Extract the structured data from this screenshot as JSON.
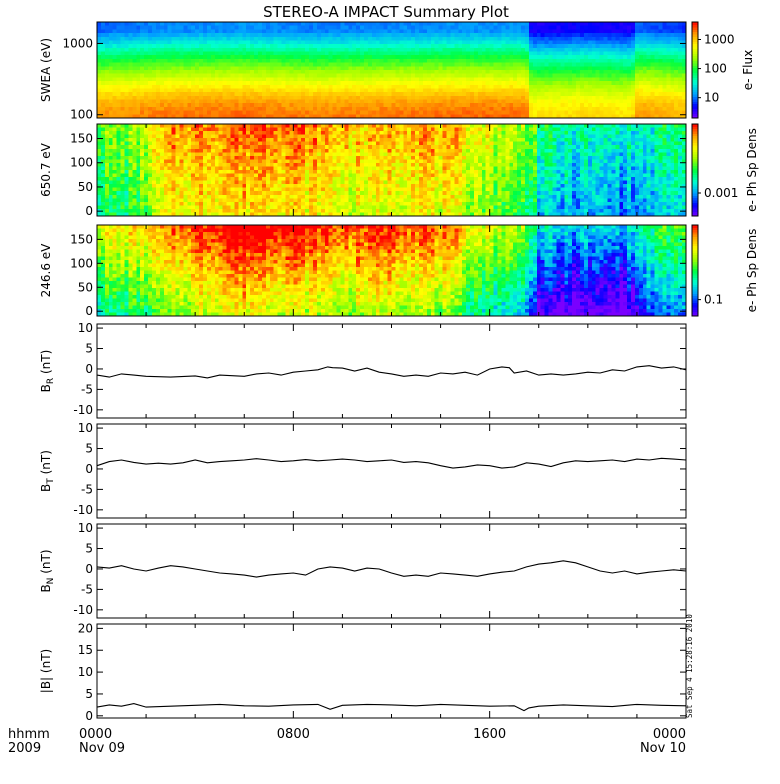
{
  "title": "STEREO-A IMPACT Summary Plot",
  "time_axis": {
    "corner_label_1": "hhmm",
    "corner_label_2": "2009",
    "range_hours": [
      0,
      24
    ],
    "ticks": [
      {
        "hour": 0,
        "line1": "0000",
        "line2": "Nov 09"
      },
      {
        "hour": 8,
        "line1": "0800",
        "line2": ""
      },
      {
        "hour": 16,
        "line1": "1600",
        "line2": ""
      },
      {
        "hour": 24,
        "line1": "0000",
        "line2": "Nov 10"
      }
    ]
  },
  "timestamp": "Sat Sep  4 15:28:16 2010",
  "colors": {
    "line": "#000000",
    "colormap": [
      "#7a00ff",
      "#0000ff",
      "#00a0ff",
      "#00ffd0",
      "#00ff40",
      "#a0ff00",
      "#ffff00",
      "#ffa000",
      "#ff0000"
    ]
  },
  "chart_data": [
    {
      "type": "heatmap",
      "panel": "swea",
      "ylabel": "SWEA (eV)",
      "yscale": "log",
      "ylim": [
        90,
        2000
      ],
      "yticks": [
        {
          "value": 100,
          "label": "100"
        },
        {
          "value": 1000,
          "label": "1000"
        }
      ],
      "colorbar": {
        "label": "e- Flux",
        "scale": "log",
        "range": [
          2,
          4000
        ],
        "ticks": [
          {
            "value": 10,
            "label": "10"
          },
          {
            "value": 100,
            "label": "100"
          },
          {
            "value": 1000,
            "label": "1000"
          }
        ]
      },
      "description_values": {
        "energy_band_levels": [
          {
            "energy": 100,
            "level": 0.86
          },
          {
            "energy": 150,
            "level": 0.82
          },
          {
            "energy": 220,
            "level": 0.74
          },
          {
            "energy": 350,
            "level": 0.62
          },
          {
            "energy": 500,
            "level": 0.52
          },
          {
            "energy": 700,
            "level": 0.42
          },
          {
            "energy": 1000,
            "level": 0.3
          },
          {
            "energy": 1500,
            "level": 0.18
          }
        ],
        "time_modulation": [
          {
            "hour": 0,
            "delta": 0.02
          },
          {
            "hour": 3,
            "delta": 0.05
          },
          {
            "hour": 6,
            "delta": 0.06
          },
          {
            "hour": 9,
            "delta": 0.04
          },
          {
            "hour": 12,
            "delta": 0.05
          },
          {
            "hour": 15,
            "delta": 0.06
          },
          {
            "hour": 17.5,
            "delta": 0.06
          },
          {
            "hour": 17.7,
            "delta": -0.08
          },
          {
            "hour": 20,
            "delta": -0.06
          },
          {
            "hour": 21.8,
            "delta": -0.08
          },
          {
            "hour": 22,
            "delta": 0.02
          },
          {
            "hour": 24,
            "delta": -0.02
          }
        ]
      }
    },
    {
      "type": "heatmap",
      "panel": "pad_650",
      "ylabel": "650.7 eV",
      "ylim": [
        -10,
        180
      ],
      "yticks": [
        {
          "value": 0,
          "label": "0"
        },
        {
          "value": 50,
          "label": "50"
        },
        {
          "value": 100,
          "label": "100"
        },
        {
          "value": 150,
          "label": "150"
        }
      ],
      "colorbar": {
        "label": "e- Ph Sp Dens",
        "ticks": [
          {
            "level": 0.25,
            "label": "0.001"
          }
        ]
      },
      "level_profile": [
        {
          "hour": 0,
          "level": 0.5
        },
        {
          "hour": 1.5,
          "level": 0.52
        },
        {
          "hour": 3,
          "level": 0.78
        },
        {
          "hour": 5,
          "level": 0.82
        },
        {
          "hour": 7,
          "level": 0.86
        },
        {
          "hour": 9,
          "level": 0.78
        },
        {
          "hour": 11,
          "level": 0.72
        },
        {
          "hour": 13,
          "level": 0.8
        },
        {
          "hour": 15,
          "level": 0.7
        },
        {
          "hour": 16.5,
          "level": 0.6
        },
        {
          "hour": 17.8,
          "level": 0.52
        },
        {
          "hour": 18,
          "level": 0.35
        },
        {
          "hour": 20,
          "level": 0.3
        },
        {
          "hour": 22,
          "level": 0.28
        },
        {
          "hour": 24,
          "level": 0.4
        }
      ]
    },
    {
      "type": "heatmap",
      "panel": "pad_246",
      "ylabel": "246.6 eV",
      "ylim": [
        -10,
        180
      ],
      "yticks": [
        {
          "value": 0,
          "label": "0"
        },
        {
          "value": 50,
          "label": "50"
        },
        {
          "value": 100,
          "label": "100"
        },
        {
          "value": 150,
          "label": "150"
        }
      ],
      "colorbar": {
        "label": "e- Ph Sp Dens",
        "ticks": [
          {
            "level": 0.18,
            "label": "0.1"
          }
        ]
      },
      "level_profile": [
        {
          "hour": 0,
          "level": 0.55
        },
        {
          "hour": 2,
          "level": 0.62
        },
        {
          "hour": 4,
          "level": 0.8
        },
        {
          "hour": 6,
          "level": 0.9
        },
        {
          "hour": 8,
          "level": 0.84
        },
        {
          "hour": 10,
          "level": 0.76
        },
        {
          "hour": 12,
          "level": 0.82
        },
        {
          "hour": 14,
          "level": 0.74
        },
        {
          "hour": 15.5,
          "level": 0.56
        },
        {
          "hour": 17.5,
          "level": 0.45
        },
        {
          "hour": 18,
          "level": 0.14
        },
        {
          "hour": 21.5,
          "level": 0.1
        },
        {
          "hour": 22.5,
          "level": 0.3
        },
        {
          "hour": 24,
          "level": 0.4
        }
      ]
    },
    {
      "type": "line",
      "panel": "br",
      "ylabel": "B",
      "ylabel_sub": "R",
      "ylabel_unit": " (nT)",
      "ylim": [
        -12,
        11
      ],
      "yticks": [
        {
          "value": -10,
          "label": "-10"
        },
        {
          "value": -5,
          "label": "-5"
        },
        {
          "value": 0,
          "label": "0"
        },
        {
          "value": 5,
          "label": "5"
        },
        {
          "value": 10,
          "label": "10"
        }
      ],
      "x": [
        0,
        0.5,
        1,
        1.5,
        2,
        3,
        4,
        4.5,
        5,
        6,
        6.5,
        7,
        7.5,
        8,
        8.5,
        9,
        9.4,
        9.6,
        10,
        10.5,
        11,
        11.5,
        12,
        12.5,
        13,
        13.5,
        14,
        14.5,
        15,
        15.5,
        16,
        16.5,
        16.8,
        17,
        17.5,
        18,
        18.5,
        19,
        19.5,
        20,
        20.5,
        21,
        21.5,
        22,
        22.5,
        23,
        23.5,
        24
      ],
      "y": [
        -1.5,
        -2,
        -1.2,
        -1.5,
        -1.8,
        -2,
        -1.7,
        -2.2,
        -1.5,
        -1.8,
        -1.2,
        -1,
        -1.5,
        -0.8,
        -0.5,
        -0.2,
        0.5,
        0.3,
        0.2,
        -0.5,
        0.2,
        -0.8,
        -1.2,
        -1.8,
        -1.5,
        -1.8,
        -1,
        -1.2,
        -0.8,
        -1.5,
        0,
        0.5,
        0.3,
        -1,
        -0.5,
        -1.5,
        -1.2,
        -1.5,
        -1.2,
        -0.8,
        -1,
        -0.2,
        -0.5,
        0.5,
        0.8,
        0.2,
        0.5,
        -0.2
      ]
    },
    {
      "type": "line",
      "panel": "bt",
      "ylabel": "B",
      "ylabel_sub": "T",
      "ylabel_unit": " (nT)",
      "ylim": [
        -12,
        11
      ],
      "yticks": [
        {
          "value": -10,
          "label": "-10"
        },
        {
          "value": -5,
          "label": "-5"
        },
        {
          "value": 0,
          "label": "0"
        },
        {
          "value": 5,
          "label": "5"
        },
        {
          "value": 10,
          "label": "10"
        }
      ],
      "x": [
        0,
        0.5,
        1,
        1.5,
        2,
        2.5,
        3,
        3.5,
        4,
        4.5,
        5,
        5.5,
        6,
        6.5,
        7,
        7.5,
        8,
        8.5,
        9,
        9.5,
        10,
        10.5,
        11,
        11.5,
        12,
        12.5,
        13,
        13.5,
        14,
        14.5,
        15,
        15.5,
        16,
        16.5,
        17,
        17.5,
        18,
        18.5,
        19,
        19.5,
        20,
        20.5,
        21,
        21.5,
        22,
        22.5,
        23,
        23.5,
        24
      ],
      "y": [
        0.8,
        1.8,
        2.2,
        1.6,
        1.2,
        1.4,
        1.2,
        1.5,
        2.2,
        1.5,
        1.8,
        2,
        2.2,
        2.5,
        2.2,
        1.8,
        2,
        2.3,
        2,
        2.2,
        2.4,
        2.2,
        1.8,
        2,
        2.2,
        1.6,
        1.8,
        1.5,
        0.8,
        0.2,
        0.5,
        1,
        0.8,
        0.2,
        0.5,
        1.5,
        1.2,
        0.6,
        1.5,
        2,
        1.8,
        2,
        2.2,
        1.8,
        2.4,
        2.2,
        2.6,
        2.4,
        2.2
      ]
    },
    {
      "type": "line",
      "panel": "bn",
      "ylabel": "B",
      "ylabel_sub": "N",
      "ylabel_unit": " (nT)",
      "ylim": [
        -12,
        11
      ],
      "yticks": [
        {
          "value": -10,
          "label": "-10"
        },
        {
          "value": -5,
          "label": "-5"
        },
        {
          "value": 0,
          "label": "0"
        },
        {
          "value": 5,
          "label": "5"
        },
        {
          "value": 10,
          "label": "10"
        }
      ],
      "x": [
        0,
        0.5,
        1,
        1.5,
        2,
        2.5,
        3,
        3.5,
        4,
        4.5,
        5,
        5.5,
        6,
        6.5,
        7,
        7.5,
        8,
        8.5,
        9,
        9.5,
        10,
        10.5,
        11,
        11.5,
        12,
        12.5,
        13,
        13.5,
        14,
        14.5,
        15,
        15.5,
        16,
        16.5,
        17,
        17.5,
        18,
        18.5,
        19,
        19.5,
        20,
        20.5,
        21,
        21.5,
        22,
        22.5,
        23,
        23.5,
        24
      ],
      "y": [
        0.5,
        0.2,
        0.8,
        0,
        -0.5,
        0.2,
        0.8,
        0.5,
        0,
        -0.5,
        -1,
        -1.2,
        -1.5,
        -2,
        -1.5,
        -1.2,
        -1,
        -1.5,
        0,
        0.5,
        0.2,
        -0.5,
        0.2,
        0,
        -1,
        -1.8,
        -1.5,
        -1.8,
        -1,
        -1.2,
        -1.5,
        -1.8,
        -1.2,
        -0.8,
        -0.5,
        0.5,
        1.2,
        1.5,
        2,
        1.5,
        0.5,
        -0.5,
        -1,
        -0.5,
        -1.2,
        -0.8,
        -0.5,
        -0.2,
        -0.5
      ]
    },
    {
      "type": "line",
      "panel": "bmag",
      "ylabel": "|B| (nT)",
      "ylim": [
        -0.5,
        21
      ],
      "yticks": [
        {
          "value": 0,
          "label": "0"
        },
        {
          "value": 5,
          "label": "5"
        },
        {
          "value": 10,
          "label": "10"
        },
        {
          "value": 15,
          "label": "15"
        },
        {
          "value": 20,
          "label": "20"
        }
      ],
      "x": [
        0,
        0.5,
        1,
        1.5,
        2,
        3,
        4,
        5,
        6,
        7,
        8,
        9,
        9.5,
        10,
        11,
        12,
        13,
        14,
        15,
        16,
        17,
        17.4,
        17.6,
        18,
        19,
        20,
        21,
        22,
        23,
        24
      ],
      "y": [
        2,
        2.5,
        2.2,
        2.8,
        2,
        2.2,
        2.4,
        2.6,
        2.3,
        2.2,
        2.5,
        2.6,
        1.5,
        2.4,
        2.6,
        2.5,
        2.3,
        2.6,
        2.4,
        2.2,
        2.3,
        1.2,
        1.8,
        2.2,
        2.5,
        2.3,
        2.1,
        2.6,
        2.4,
        2.3
      ]
    }
  ]
}
